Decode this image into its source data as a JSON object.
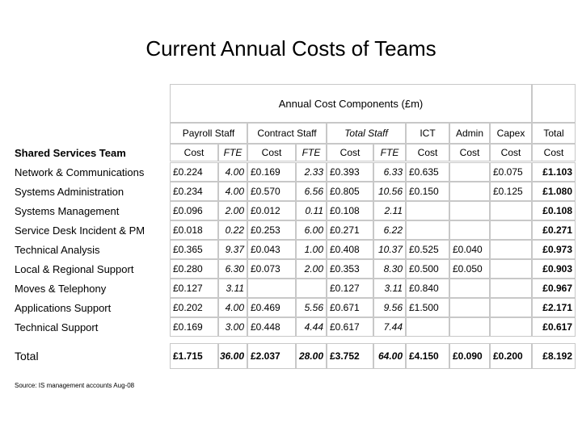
{
  "title": "Current Annual Costs of Teams",
  "table": {
    "caption": "Annual Cost Components (£m)",
    "groups": [
      "Payroll Staff",
      "Contract Staff",
      "Total Staff",
      "ICT",
      "Admin",
      "Capex",
      "Total"
    ],
    "columns": [
      "Shared Services Team",
      "Cost",
      "FTE",
      "Cost",
      "FTE",
      "Cost",
      "FTE",
      "Cost",
      "Cost",
      "Cost",
      "Cost"
    ],
    "rows": [
      [
        "Network & Communications",
        "£0.224",
        "4.00",
        "£0.169",
        "2.33",
        "£0.393",
        "6.33",
        "£0.635",
        null,
        "£0.075",
        "£1.103"
      ],
      [
        "Systems Administration",
        "£0.234",
        "4.00",
        "£0.570",
        "6.56",
        "£0.805",
        "10.56",
        "£0.150",
        null,
        "£0.125",
        "£1.080"
      ],
      [
        "Systems Management",
        "£0.096",
        "2.00",
        "£0.012",
        "0.11",
        "£0.108",
        "2.11",
        null,
        null,
        null,
        "£0.108"
      ],
      [
        "Service Desk Incident & PM",
        "£0.018",
        "0.22",
        "£0.253",
        "6.00",
        "£0.271",
        "6.22",
        null,
        null,
        null,
        "£0.271"
      ],
      [
        "Technical Analysis",
        "£0.365",
        "9.37",
        "£0.043",
        "1.00",
        "£0.408",
        "10.37",
        "£0.525",
        "£0.040",
        null,
        "£0.973"
      ],
      [
        "Local & Regional Support",
        "£0.280",
        "6.30",
        "£0.073",
        "2.00",
        "£0.353",
        "8.30",
        "£0.500",
        "£0.050",
        null,
        "£0.903"
      ],
      [
        "Moves & Telephony",
        "£0.127",
        "3.11",
        null,
        null,
        "£0.127",
        "3.11",
        "£0.840",
        null,
        null,
        "£0.967"
      ],
      [
        "Applications Support",
        "£0.202",
        "4.00",
        "£0.469",
        "5.56",
        "£0.671",
        "9.56",
        "£1.500",
        null,
        null,
        "£2.171"
      ],
      [
        "Technical Support",
        "£0.169",
        "3.00",
        "£0.448",
        "4.44",
        "£0.617",
        "7.44",
        null,
        null,
        null,
        "£0.617"
      ],
      [
        "Total",
        "£1.715",
        "36.00",
        "£2.037",
        "28.00",
        "£3.752",
        "64.00",
        "£4.150",
        "£0.090",
        "£0.200",
        "£8.192"
      ]
    ]
  },
  "source": "Source: IS management accounts Aug-08"
}
